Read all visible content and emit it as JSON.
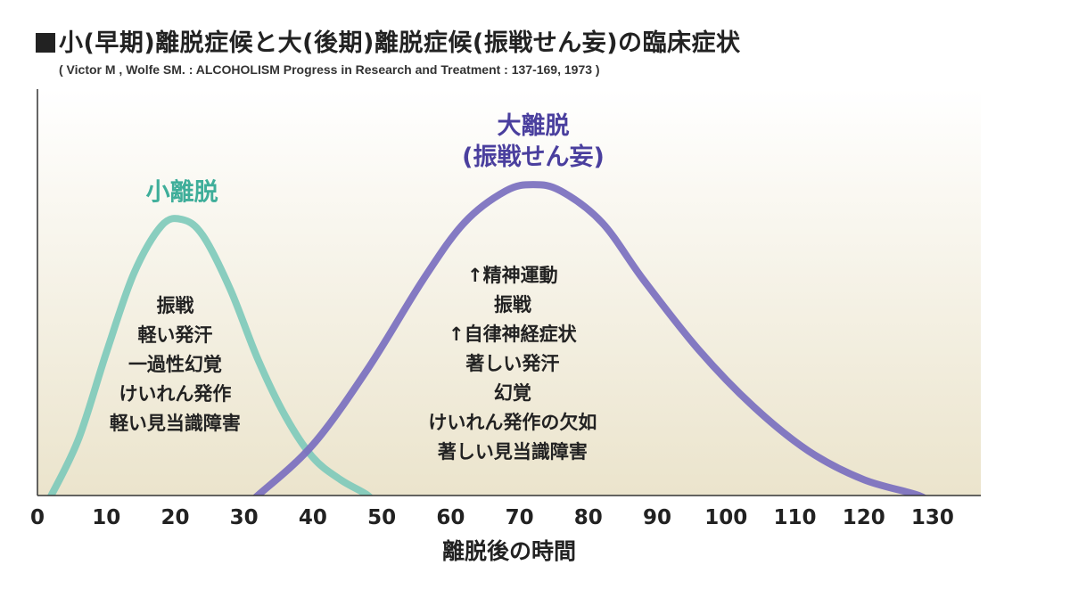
{
  "title": "小(早期)離脱症候と大(後期)離脱症候(振戦せん妄)の臨床症状",
  "citation": "( Victor M , Wolfe SM. : ALCOHOLISM Progress in Research and Treatment : 137-169, 1973 )",
  "colors": {
    "minor": "#7fcabb",
    "minor_label": "#3fae9a",
    "major": "#7a6fbf",
    "major_label": "#4a3f9e",
    "background_top": "#ffffff",
    "background_bottom": "#ebe4cc"
  },
  "chart_data": {
    "type": "line",
    "xlabel": "離脱後の時間",
    "xlim": [
      0,
      137
    ],
    "ylim": [
      0,
      100
    ],
    "x_ticks": [
      "0",
      "10",
      "20",
      "30",
      "40",
      "50",
      "60",
      "70",
      "80",
      "90",
      "100",
      "110",
      "120",
      "130"
    ],
    "grid": false,
    "series": [
      {
        "key": "minor",
        "name": "小離脱",
        "peak_x": 21,
        "symptoms": [
          "振戦",
          "軽い発汗",
          "一過性幻覚",
          "けいれん発作",
          "軽い見当識障害"
        ],
        "x": [
          2,
          6,
          10,
          14,
          18,
          21,
          24,
          28,
          32,
          36,
          40,
          44,
          48
        ],
        "y": [
          0,
          18,
          45,
          70,
          85,
          87,
          82,
          65,
          43,
          25,
          12,
          5,
          0
        ]
      },
      {
        "key": "major",
        "name": "大離脱\n(振戦せん妄)",
        "name_lines": [
          "大離脱",
          "(振戦せん妄)"
        ],
        "peak_x": 72,
        "symptoms": [
          "↑精神運動",
          "振戦",
          "↑自律神経症状",
          "著しい発汗",
          "幻覚",
          "けいれん発作の欠如",
          "著しい見当識障害"
        ],
        "x": [
          32,
          40,
          48,
          56,
          62,
          68,
          72,
          76,
          82,
          88,
          96,
          104,
          112,
          120,
          128
        ],
        "y": [
          0,
          16,
          40,
          68,
          86,
          96,
          98,
          96,
          86,
          68,
          46,
          28,
          14,
          5,
          0
        ]
      }
    ]
  }
}
